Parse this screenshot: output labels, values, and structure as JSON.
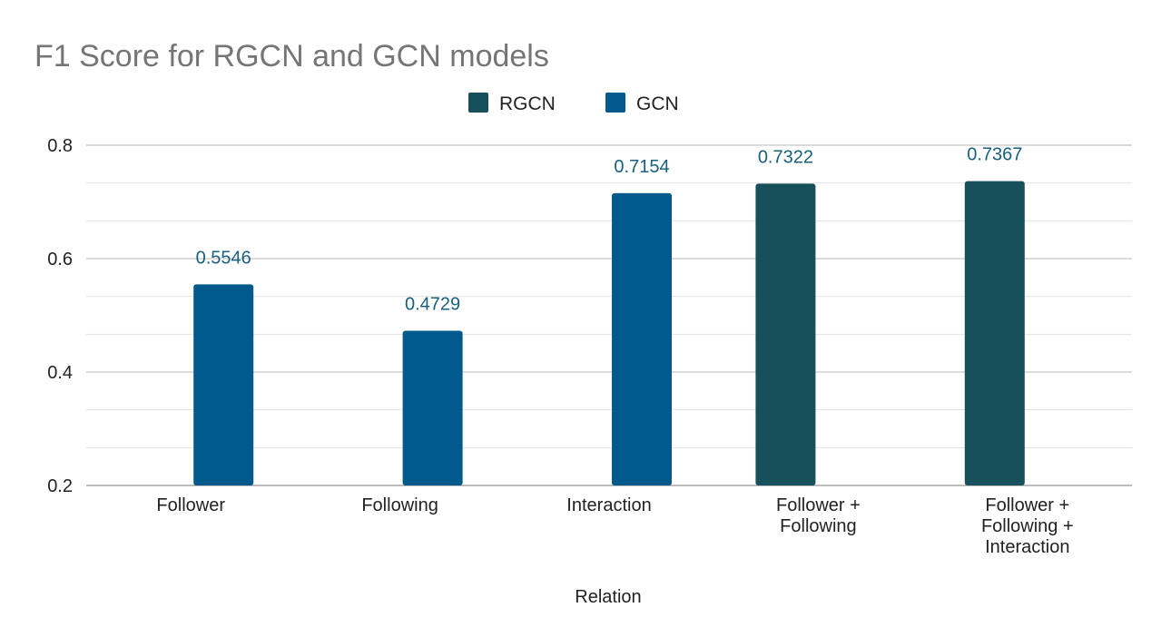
{
  "chart_data": {
    "type": "bar",
    "title": "F1 Score for RGCN and GCN models",
    "xlabel": "Relation",
    "ylabel": "",
    "categories": [
      [
        "Follower"
      ],
      [
        "Following"
      ],
      [
        "Interaction"
      ],
      [
        "Follower +",
        "Following"
      ],
      [
        "Follower +",
        "Following +",
        "Interaction"
      ]
    ],
    "series": [
      {
        "name": "RGCN",
        "color": "#17505b",
        "values": [
          null,
          null,
          null,
          0.7322,
          0.7367
        ]
      },
      {
        "name": "GCN",
        "color": "#025a8c",
        "values": [
          0.5546,
          0.4729,
          0.7154,
          null,
          null
        ]
      }
    ],
    "data_labels": [
      "0.5546",
      "0.4729",
      "0.7154",
      "0.7322",
      "0.7367"
    ],
    "data_label_color": "#17607e",
    "ylim": [
      0.2,
      0.8
    ],
    "yticks": [
      0.2,
      0.4,
      0.6,
      0.8
    ],
    "ytick_labels": [
      "0.2",
      "0.4",
      "0.6",
      "0.8"
    ],
    "minor_grid_step": 0.0667,
    "grid": true,
    "legend_position": "top-center"
  }
}
